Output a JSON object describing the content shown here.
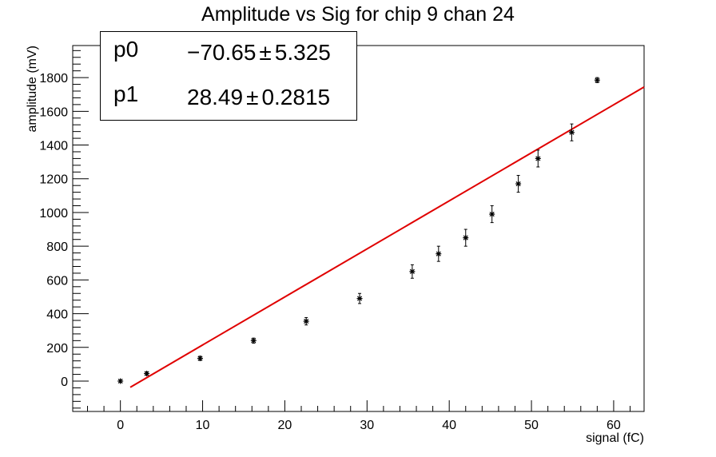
{
  "chart_data": {
    "type": "scatter",
    "title": "Amplitude vs Sig for chip 9 chan 24",
    "xlabel": "signal (fC)",
    "ylabel": "amplitude (mV)",
    "xlim": [
      -5.8,
      63.7
    ],
    "ylim": [
      -180,
      1990
    ],
    "x_ticks": [
      0,
      10,
      20,
      30,
      40,
      50,
      60
    ],
    "y_ticks": [
      0,
      200,
      400,
      600,
      800,
      1000,
      1200,
      1400,
      1600,
      1800
    ],
    "grid": false,
    "points": [
      {
        "x": 0.0,
        "y": 0,
        "err": 8
      },
      {
        "x": 3.2,
        "y": 45,
        "err": 10
      },
      {
        "x": 9.7,
        "y": 135,
        "err": 12
      },
      {
        "x": 16.2,
        "y": 240,
        "err": 15
      },
      {
        "x": 22.6,
        "y": 355,
        "err": 22
      },
      {
        "x": 29.1,
        "y": 490,
        "err": 30
      },
      {
        "x": 35.5,
        "y": 650,
        "err": 40
      },
      {
        "x": 38.7,
        "y": 755,
        "err": 45
      },
      {
        "x": 42.0,
        "y": 850,
        "err": 50
      },
      {
        "x": 45.2,
        "y": 990,
        "err": 50
      },
      {
        "x": 48.4,
        "y": 1170,
        "err": 50
      },
      {
        "x": 50.8,
        "y": 1320,
        "err": 50
      },
      {
        "x": 54.9,
        "y": 1475,
        "err": 50
      },
      {
        "x": 58.0,
        "y": 1785,
        "err": 15
      }
    ],
    "fit": {
      "function": "pol1",
      "x_range": [
        1.2,
        63.7
      ],
      "color": "#e00000"
    },
    "stats": [
      {
        "name": "p0",
        "value": "−70.65",
        "pm": "±",
        "error": "5.325"
      },
      {
        "name": "p1",
        "value": "28.49",
        "pm": "±",
        "error": "0.2815"
      }
    ],
    "params": {
      "p0": -70.65,
      "p1": 28.49
    }
  }
}
